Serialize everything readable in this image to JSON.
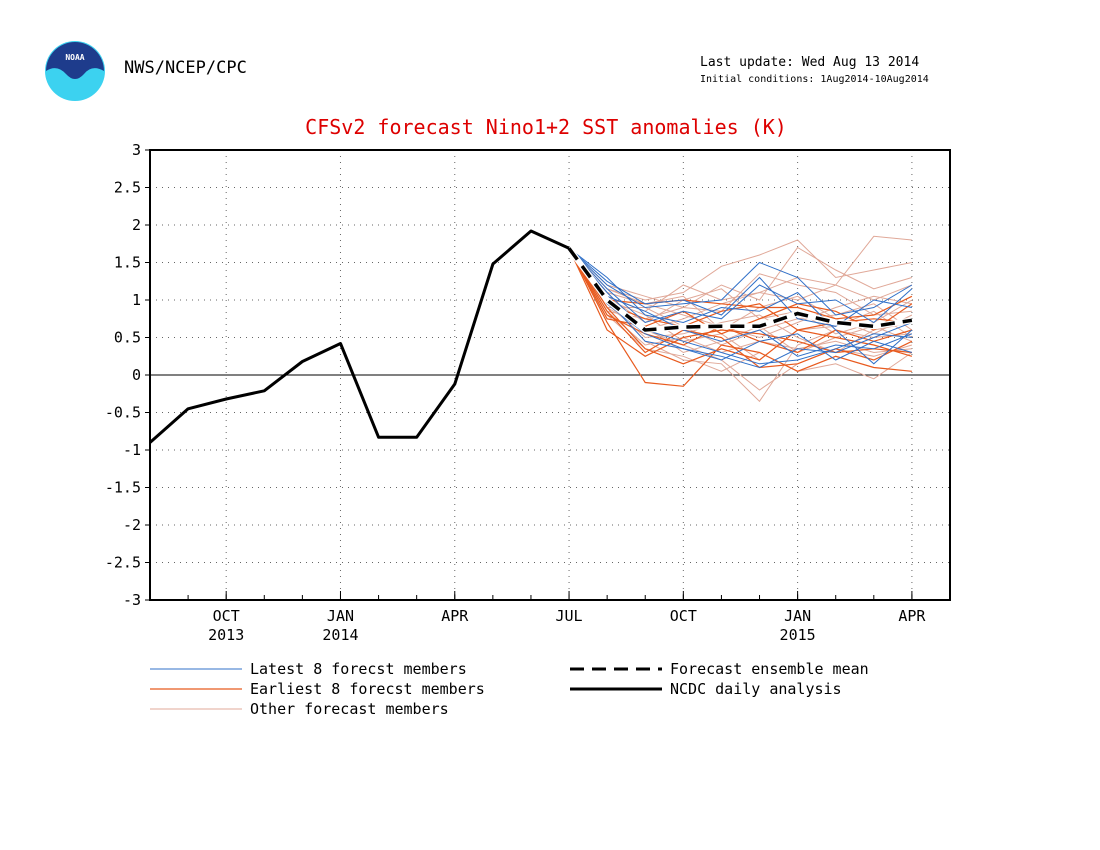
{
  "header": {
    "logo_text": "NOAA",
    "agency": "NWS/NCEP/CPC",
    "last_update": "Last update: Wed Aug 13 2014",
    "initial_conditions": "Initial conditions: 1Aug2014-10Aug2014"
  },
  "colors": {
    "title": "#dd0000",
    "latest": "#3070c8",
    "earliest": "#e85a1e",
    "other": "#e0a898",
    "analysis": "#000000",
    "noaa_blue": "#1e3c8c",
    "noaa_cyan": "#3cd2f0"
  },
  "chart_data": {
    "type": "line",
    "title": "CFSv2 forecast Nino1+2 SST anomalies (K)",
    "ylim": [
      -3,
      3
    ],
    "y_ticks": [
      3,
      2.5,
      2,
      1.5,
      1,
      0.5,
      0,
      -0.5,
      -1,
      -1.5,
      -2,
      -2.5,
      -3
    ],
    "y_tick_labels": [
      "3",
      "2.5",
      "2",
      "1.5",
      "1",
      "0.5",
      "0",
      "-0.5",
      "-1",
      "-1.5",
      "-2",
      "-2.5",
      "-3"
    ],
    "x_months": [
      "Aug 2013",
      "Sep 2013",
      "Oct 2013",
      "Nov 2013",
      "Dec 2013",
      "Jan 2014",
      "Feb 2014",
      "Mar 2014",
      "Apr 2014",
      "May 2014",
      "Jun 2014",
      "Jul 2014",
      "Aug 2014",
      "Sep 2014",
      "Oct 2014",
      "Nov 2014",
      "Dec 2014",
      "Jan 2015",
      "Feb 2015",
      "Mar 2015",
      "Apr 2015",
      "May 2015"
    ],
    "x_ticks": [
      {
        "month": "Oct 2013",
        "label": "OCT",
        "year": "2013"
      },
      {
        "month": "Jan 2014",
        "label": "JAN",
        "year": "2014"
      },
      {
        "month": "Apr 2014",
        "label": "APR",
        "year": ""
      },
      {
        "month": "Jul 2014",
        "label": "JUL",
        "year": ""
      },
      {
        "month": "Oct 2014",
        "label": "OCT",
        "year": ""
      },
      {
        "month": "Jan 2015",
        "label": "JAN",
        "year": "2015"
      },
      {
        "month": "Apr 2015",
        "label": "APR",
        "year": ""
      }
    ],
    "zero_line": 0,
    "grid": true,
    "analysis": {
      "name": "NCDC daily analysis",
      "x": [
        "Aug 2013",
        "Sep 2013",
        "Oct 2013",
        "Nov 2013",
        "Dec 2013",
        "Jan 2014",
        "Feb 2014",
        "Mar 2014",
        "Apr 2014",
        "May 2014",
        "Jun 2014",
        "Jul 2014"
      ],
      "values": [
        -0.9,
        -0.45,
        -0.32,
        -0.21,
        0.18,
        0.42,
        -0.83,
        -0.83,
        -0.12,
        1.48,
        1.92,
        1.69
      ]
    },
    "ensemble_mean": {
      "name": "Forecast ensemble mean",
      "x": [
        "Jul 2014",
        "Aug 2014",
        "Sep 2014",
        "Oct 2014",
        "Nov 2014",
        "Dec 2014",
        "Jan 2015",
        "Feb 2015",
        "Mar 2015",
        "Apr 2015"
      ],
      "values": [
        1.69,
        1.0,
        0.6,
        0.64,
        0.65,
        0.65,
        0.82,
        0.7,
        0.65,
        0.73
      ]
    },
    "member_months": [
      "Jul 2014",
      "Aug 2014",
      "Sep 2014",
      "Oct 2014",
      "Nov 2014",
      "Dec 2014",
      "Jan 2015",
      "Feb 2015",
      "Mar 2015",
      "Apr 2015"
    ],
    "latest_members": [
      [
        1.69,
        1.2,
        0.9,
        0.95,
        1.0,
        1.5,
        1.3,
        0.8,
        0.9,
        1.2
      ],
      [
        1.69,
        1.1,
        0.6,
        0.45,
        0.3,
        0.15,
        0.2,
        0.35,
        0.55,
        0.5
      ],
      [
        1.69,
        1.3,
        0.8,
        0.7,
        0.9,
        0.85,
        1.1,
        0.6,
        0.15,
        0.6
      ],
      [
        1.69,
        1.0,
        0.45,
        0.35,
        0.25,
        0.1,
        0.35,
        0.3,
        0.5,
        0.7
      ],
      [
        1.69,
        1.15,
        0.7,
        0.85,
        0.75,
        1.2,
        0.95,
        1.0,
        0.7,
        1.15
      ],
      [
        1.69,
        0.95,
        0.55,
        0.35,
        0.2,
        0.45,
        0.55,
        0.2,
        0.45,
        0.3
      ],
      [
        1.69,
        1.05,
        0.85,
        0.6,
        0.45,
        0.6,
        0.25,
        0.4,
        0.35,
        0.55
      ],
      [
        1.69,
        1.25,
        0.95,
        1.0,
        0.8,
        1.3,
        0.75,
        0.65,
        1.0,
        0.9
      ]
    ],
    "earliest_members": [
      [
        1.69,
        0.7,
        -0.1,
        -0.15,
        0.4,
        0.3,
        0.05,
        0.25,
        0.1,
        0.05
      ],
      [
        1.69,
        0.6,
        0.25,
        0.5,
        0.6,
        0.55,
        0.45,
        0.3,
        0.35,
        0.3
      ],
      [
        1.69,
        0.75,
        0.65,
        0.85,
        0.55,
        0.75,
        0.95,
        0.85,
        0.6,
        0.95
      ],
      [
        1.69,
        0.9,
        0.35,
        0.15,
        0.35,
        0.2,
        0.6,
        0.5,
        0.4,
        0.25
      ],
      [
        1.69,
        1.0,
        0.95,
        1.0,
        0.95,
        0.9,
        0.9,
        0.75,
        0.8,
        1.05
      ],
      [
        1.69,
        0.8,
        0.55,
        0.4,
        0.65,
        0.45,
        0.3,
        0.6,
        0.45,
        0.6
      ],
      [
        1.69,
        0.85,
        0.3,
        0.6,
        0.5,
        0.1,
        0.15,
        0.35,
        0.2,
        0.45
      ],
      [
        1.69,
        0.95,
        0.75,
        0.65,
        0.85,
        0.95,
        0.6,
        0.7,
        0.75,
        0.7
      ]
    ],
    "other_members": [
      [
        1.69,
        1.15,
        1.0,
        1.1,
        1.45,
        1.6,
        1.8,
        1.3,
        1.4,
        1.5
      ],
      [
        1.69,
        1.05,
        0.85,
        1.2,
        1.0,
        1.1,
        1.3,
        1.2,
        1.85,
        1.8
      ],
      [
        1.69,
        0.9,
        0.6,
        0.4,
        0.2,
        -0.2,
        0.15,
        0.35,
        0.25,
        0.4
      ],
      [
        1.69,
        1.0,
        0.45,
        0.2,
        0.15,
        -0.35,
        0.4,
        0.6,
        0.5,
        0.55
      ],
      [
        1.69,
        0.85,
        0.75,
        0.9,
        1.2,
        1.0,
        1.7,
        1.4,
        1.15,
        1.3
      ],
      [
        1.69,
        1.1,
        0.95,
        0.8,
        0.65,
        0.5,
        0.7,
        0.9,
        1.05,
        0.95
      ],
      [
        1.69,
        0.95,
        0.5,
        0.55,
        0.7,
        0.8,
        0.5,
        0.3,
        0.6,
        0.7
      ],
      [
        1.69,
        1.2,
        1.05,
        0.9,
        0.85,
        1.35,
        1.2,
        1.1,
        0.8,
        0.85
      ],
      [
        1.69,
        0.8,
        0.35,
        0.25,
        0.05,
        0.3,
        0.05,
        0.15,
        -0.05,
        0.3
      ],
      [
        1.69,
        1.05,
        0.7,
        1.0,
        1.15,
        0.75,
        0.85,
        0.55,
        0.7,
        1.0
      ],
      [
        1.69,
        0.9,
        0.9,
        0.65,
        0.4,
        0.6,
        0.75,
        0.8,
        0.95,
        0.6
      ],
      [
        1.69,
        1.1,
        0.6,
        0.75,
        0.95,
        1.1,
        1.0,
        1.2,
        1.0,
        1.2
      ],
      [
        1.69,
        0.85,
        0.4,
        0.5,
        0.3,
        0.45,
        0.35,
        0.45,
        0.3,
        0.35
      ],
      [
        1.69,
        1.0,
        0.8,
        0.45,
        0.55,
        0.2,
        0.6,
        0.65,
        0.85,
        0.5
      ],
      [
        1.69,
        1.15,
        0.95,
        1.05,
        0.6,
        0.9,
        1.05,
        0.75,
        0.55,
        0.8
      ],
      [
        1.69,
        0.95,
        0.65,
        0.3,
        0.45,
        0.65,
        0.3,
        0.5,
        0.65,
        0.45
      ]
    ],
    "legend": [
      {
        "label": "Latest 8 forecst members",
        "style": "latest"
      },
      {
        "label": "Earliest 8 forecst members",
        "style": "earliest"
      },
      {
        "label": "Other forecast members",
        "style": "other"
      },
      {
        "label": "Forecast ensemble mean",
        "style": "mean"
      },
      {
        "label": "NCDC daily analysis",
        "style": "analysis"
      }
    ]
  }
}
